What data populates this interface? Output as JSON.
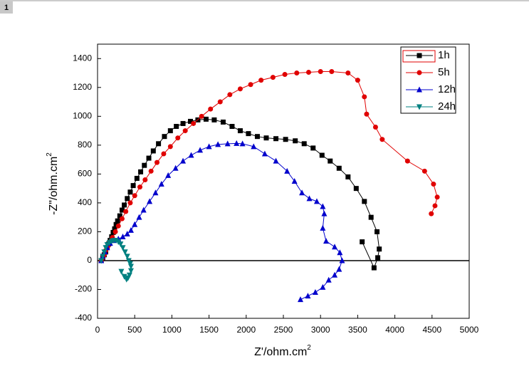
{
  "page_label": "1",
  "chart_data": {
    "type": "line",
    "xlabel": "Z'/ohm.cm",
    "xlabel_superscript": "2",
    "ylabel": "-Z\"/ohm.cm",
    "ylabel_superscript": "2",
    "xlim": [
      0,
      5000
    ],
    "xticks": [
      0,
      500,
      1000,
      1500,
      2000,
      2500,
      3000,
      3500,
      4000,
      4500,
      5000
    ],
    "ylim": [
      -400,
      1500
    ],
    "yticks": [
      -400,
      -200,
      0,
      200,
      400,
      600,
      800,
      1000,
      1200,
      1400
    ],
    "hline": 0,
    "legend": "top-right",
    "series": [
      {
        "name": "1h",
        "color": "#000000",
        "marker": "square",
        "x": [
          50,
          70,
          90,
          110,
          130,
          150,
          170,
          190,
          210,
          230,
          250,
          270,
          300,
          330,
          360,
          400,
          440,
          480,
          530,
          580,
          630,
          690,
          750,
          820,
          900,
          980,
          1060,
          1150,
          1250,
          1350,
          1460,
          1570,
          1690,
          1810,
          1920,
          2030,
          2150,
          2270,
          2400,
          2530,
          2660,
          2780,
          2900,
          3020,
          3130,
          3250,
          3370,
          3480,
          3590,
          3680,
          3760,
          3790,
          3770,
          3720,
          3560
        ],
        "values": [
          0,
          20,
          40,
          60,
          90,
          115,
          140,
          165,
          195,
          220,
          250,
          275,
          310,
          350,
          385,
          430,
          475,
          520,
          570,
          615,
          660,
          710,
          760,
          810,
          860,
          900,
          930,
          950,
          965,
          975,
          980,
          975,
          960,
          930,
          900,
          880,
          860,
          850,
          845,
          840,
          830,
          810,
          780,
          730,
          690,
          640,
          580,
          500,
          410,
          300,
          200,
          80,
          20,
          -50,
          130
        ]
      },
      {
        "name": "5h",
        "color": "#e00000",
        "marker": "circle",
        "x": [
          50,
          70,
          90,
          110,
          140,
          170,
          200,
          240,
          280,
          330,
          380,
          440,
          500,
          570,
          640,
          720,
          800,
          890,
          980,
          1080,
          1180,
          1290,
          1400,
          1520,
          1650,
          1780,
          1920,
          2060,
          2200,
          2360,
          2520,
          2680,
          2840,
          3000,
          3150,
          3370,
          3500,
          3590,
          3620,
          3740,
          3830,
          4170,
          4400,
          4520,
          4570,
          4540,
          4490
        ],
        "values": [
          0,
          20,
          40,
          70,
          100,
          130,
          160,
          200,
          240,
          290,
          340,
          400,
          450,
          510,
          560,
          620,
          680,
          740,
          790,
          850,
          900,
          950,
          1000,
          1050,
          1100,
          1150,
          1190,
          1220,
          1250,
          1270,
          1290,
          1300,
          1305,
          1310,
          1310,
          1300,
          1250,
          1135,
          1015,
          925,
          840,
          690,
          620,
          530,
          440,
          380,
          325
        ]
      },
      {
        "name": "12h",
        "color": "#0000cc",
        "marker": "triangle-up",
        "x": [
          50,
          70,
          100,
          130,
          170,
          220,
          280,
          340,
          400,
          450,
          500,
          560,
          620,
          700,
          780,
          860,
          950,
          1050,
          1150,
          1260,
          1380,
          1500,
          1620,
          1750,
          1870,
          1950,
          2100,
          2250,
          2400,
          2550,
          2650,
          2750,
          2850,
          2950,
          3030,
          3050,
          3030,
          3075,
          3190,
          3260,
          3290,
          3250,
          3190,
          3110,
          3030,
          2930,
          2830,
          2730
        ],
        "values": [
          0,
          30,
          60,
          90,
          120,
          140,
          150,
          165,
          185,
          210,
          250,
          300,
          350,
          410,
          470,
          530,
          590,
          640,
          690,
          730,
          765,
          790,
          805,
          810,
          812,
          810,
          790,
          740,
          690,
          620,
          550,
          470,
          430,
          410,
          375,
          325,
          225,
          135,
          95,
          55,
          0,
          -60,
          -100,
          -135,
          -185,
          -220,
          -245,
          -270
        ]
      },
      {
        "name": "24h",
        "color": "#008080",
        "marker": "triangle-down",
        "x": [
          50,
          70,
          90,
          110,
          130,
          160,
          190,
          220,
          250,
          280,
          310,
          340,
          370,
          400,
          420,
          440,
          450,
          450,
          430,
          410,
          390,
          360,
          320
        ],
        "values": [
          0,
          30,
          60,
          90,
          110,
          125,
          135,
          140,
          140,
          130,
          115,
          90,
          60,
          30,
          0,
          -20,
          -40,
          -70,
          -100,
          -120,
          -130,
          -110,
          -75
        ]
      }
    ]
  }
}
